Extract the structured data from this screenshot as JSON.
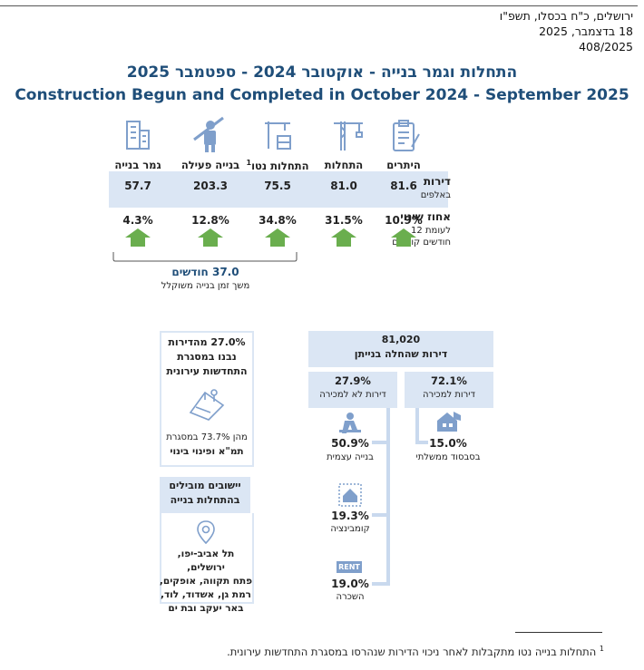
{
  "header": {
    "city_date_he": "ירושלים, כ\"ח בכסלו, תשפ\"ו",
    "date_he": "18 בדצמבר, 2025",
    "release_no": "408/2025"
  },
  "title": {
    "hebrew": "התחלות וגמר בנייה - אוקטובר 2024 - ספטמבר 2025",
    "english": "Construction Begun and Completed in October 2024 - September 2025"
  },
  "columns": [
    {
      "label": "היתרים",
      "icon": "permit-clipboard-icon",
      "dwellings": "81.6",
      "change": "10.9%"
    },
    {
      "label": "התחלות",
      "icon": "crane-icon",
      "dwellings": "81.0",
      "change": "31.5%"
    },
    {
      "label": "התחלות נטו",
      "label_sup": "1",
      "icon": "construction-site-icon",
      "dwellings": "75.5",
      "change": "34.8%"
    },
    {
      "label": "בנייה פעילה",
      "icon": "worker-icon",
      "dwellings": "203.3",
      "change": "12.8%"
    },
    {
      "label": "גמר בנייה",
      "icon": "building-icon",
      "dwellings": "57.7",
      "change": "4.3%"
    }
  ],
  "row_dwellings": {
    "label": "דירות",
    "sub": "באלפים"
  },
  "row_change": {
    "label": "אחוז שינוי",
    "sub1": "לעומת 12",
    "sub2": "חודשים קודמים"
  },
  "duration": {
    "value": "37.0 חודשים",
    "label": "משך זמן בנייה משוקלל"
  },
  "tama": {
    "line1": "27.0% מהדירות",
    "line2": "נבנו במסגרת",
    "line3": "התחדשות עירונית",
    "sub1": "מהן 73.7% במסגרת",
    "sub2": "תמ\"א ופינוי בינוי"
  },
  "leading": {
    "title1": "יישובים מובילים",
    "title2": "בהתחלות בנייה",
    "cities": [
      "תל אביב-יפו, ירושלים,",
      "פתח תקווה, אופקים,",
      "רמת גן, אשדוד, לוד,",
      "באר יעקב ובת ים"
    ]
  },
  "tree": {
    "total_value": "81,020",
    "total_label": "דירות שהחלה בנייתן",
    "for_sale_value": "72.1%",
    "for_sale_label": "דירות למכירה",
    "not_sale_value": "27.9%",
    "not_sale_label": "דירות לא למכירה",
    "subsidy_value": "15.0%",
    "subsidy_label": "בסבסוד ממשלתי",
    "self_value": "50.9%",
    "self_label": "בנייה עצמית",
    "combination_value": "19.3%",
    "combination_label": "קומבינציה",
    "rent_value": "19.0%",
    "rent_label": "השכרה",
    "rent_icon_text": "RENT"
  },
  "footnote": {
    "sup": "1",
    "text": "התחלות בנייה נטו מתקבלות לאחר ניכוי הדירות שנהרסו במסגרת התחדשות עירונית."
  },
  "colors": {
    "title": "#1f4e79",
    "band": "#dbe6f4",
    "arrow": "#6aae4e",
    "icon": "#7f9fcb"
  }
}
